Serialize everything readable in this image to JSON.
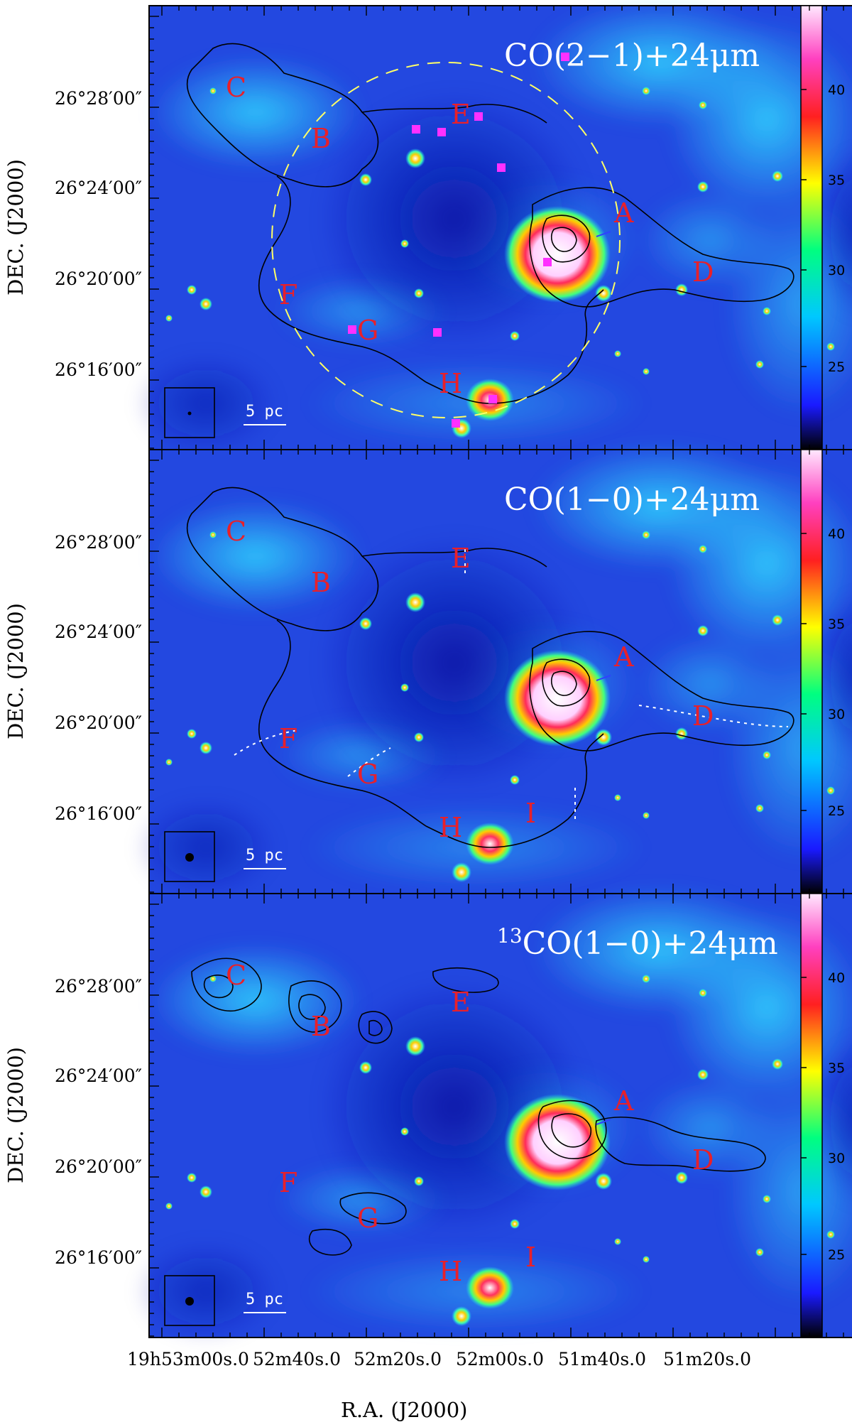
{
  "figure": {
    "xlabel": "R.A.  (J2000)",
    "ylabel": "DEC.  (J2000)",
    "dec_ticks": [
      "26°28′00″",
      "26°24′00″",
      "26°20′00″",
      "26°16′00″"
    ],
    "ra_ticks": [
      {
        "h": "19",
        "hs": "h",
        "m": "53",
        "ms": "m",
        "s": "00",
        "ss": "s",
        ".0": ".0"
      },
      {
        "m": "52",
        "ms": "m",
        "s": "40",
        "ss": "s"
      },
      {
        "m": "52",
        "ms": "m",
        "s": "20",
        "ss": "s"
      },
      {
        "m": "52",
        "ms": "m",
        "s": "00",
        "ss": "s"
      },
      {
        "m": "51",
        "ms": "m",
        "s": "40",
        "ss": "s"
      },
      {
        "m": "51",
        "ms": "m",
        "s": "20",
        "ss": "s"
      }
    ],
    "ra_tick_text": [
      "19h53m00s.0",
      "52m40s.0",
      "52m20s.0",
      "52m00s.0",
      "51m40s.0",
      "51m20s.0"
    ],
    "colorbar_ticks": [
      "40",
      "35",
      "30",
      "25"
    ],
    "scale_bar": "5 pc",
    "colors": {
      "bg_blue": "#1c3fd8",
      "label_red": "#e8202a",
      "shell_yellow": "#ffff66"
    },
    "panels": [
      {
        "title_pre": "",
        "title": "CO(2−1)+24μm",
        "labels": [
          "A",
          "B",
          "C",
          "D",
          "E",
          "F",
          "G",
          "H"
        ]
      },
      {
        "title_pre": "",
        "title": "CO(1−0)+24μm",
        "labels": [
          "A",
          "B",
          "C",
          "D",
          "E",
          "F",
          "G",
          "H",
          "I"
        ]
      },
      {
        "title_pre": "13",
        "title": "CO(1−0)+24μm",
        "labels": [
          "A",
          "B",
          "C",
          "D",
          "E",
          "F",
          "G",
          "H",
          "I"
        ]
      }
    ]
  }
}
